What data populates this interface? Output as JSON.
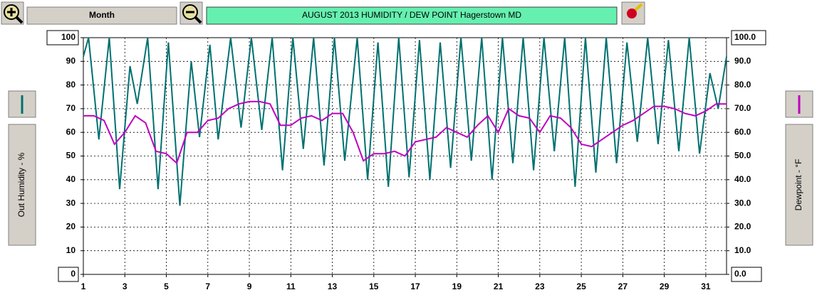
{
  "toolbar": {
    "period": "Month"
  },
  "chart_data": {
    "type": "line",
    "title": "AUGUST 2013  HUMIDITY / DEW POINT  Hagerstown MD",
    "y_label": "Out Humidity - %",
    "y2_label": "Dewpoint - °F",
    "xlim": [
      1,
      32
    ],
    "xticks": [
      1,
      3,
      5,
      7,
      9,
      11,
      13,
      15,
      17,
      19,
      21,
      23,
      25,
      27,
      29,
      31
    ],
    "ylim": [
      0,
      100
    ],
    "yticks": [
      0,
      10,
      20,
      30,
      40,
      50,
      60,
      70,
      80,
      90,
      100
    ],
    "y2lim": [
      0,
      100
    ],
    "y2ticks": [
      {
        "value": 0,
        "label": "0.0"
      },
      {
        "value": 10,
        "label": "10.0"
      },
      {
        "value": 20,
        "label": "20.0"
      },
      {
        "value": 30,
        "label": "30.0"
      },
      {
        "value": 40,
        "label": "40.0"
      },
      {
        "value": 50,
        "label": "50.0"
      },
      {
        "value": 60,
        "label": "60.0"
      },
      {
        "value": 70,
        "label": "70.0"
      },
      {
        "value": 80,
        "label": "80.0"
      },
      {
        "value": 90,
        "label": "90.0"
      },
      {
        "value": 100,
        "label": "100.0"
      }
    ],
    "grid": true,
    "series": [
      {
        "color": "#007070",
        "axis": "y",
        "x": [
          1,
          1.25,
          1.75,
          2.25,
          2.75,
          3.25,
          3.6,
          4.1,
          4.6,
          5.1,
          5.65,
          6.2,
          6.6,
          7.1,
          7.5,
          8.1,
          8.6,
          9.1,
          9.6,
          10.1,
          10.6,
          11.1,
          11.6,
          12.1,
          12.6,
          13.1,
          13.6,
          14.2,
          14.7,
          15.2,
          15.7,
          16.2,
          16.7,
          17.2,
          17.7,
          18.2,
          18.7,
          19.2,
          19.7,
          20.2,
          20.7,
          21.2,
          21.7,
          22.2,
          22.7,
          23.2,
          23.7,
          24.2,
          24.7,
          25.2,
          25.7,
          26.2,
          26.7,
          27.2,
          27.7,
          28.2,
          28.7,
          29.2,
          29.7,
          30.2,
          30.7,
          31.2,
          31.6,
          32
        ],
        "values": [
          92,
          100,
          57,
          100,
          36,
          88,
          72,
          100,
          36,
          98,
          29,
          90,
          58,
          97,
          57,
          100,
          62,
          100,
          61,
          100,
          44,
          100,
          53,
          100,
          46,
          100,
          48,
          100,
          40,
          98,
          37,
          100,
          41,
          99,
          40,
          98,
          45,
          100,
          48,
          100,
          40,
          100,
          47,
          100,
          44,
          100,
          52,
          100,
          37,
          100,
          43,
          100,
          47,
          98,
          56,
          100,
          55,
          99,
          52,
          100,
          51,
          85,
          70,
          92
        ]
      },
      {
        "color": "#c000c0",
        "axis": "y2",
        "x": [
          1,
          1.5,
          2,
          2.5,
          3,
          3.5,
          4,
          4.5,
          5,
          5.5,
          6,
          6.5,
          7,
          7.5,
          8,
          8.5,
          9,
          9.5,
          10,
          10.5,
          11,
          11.5,
          12,
          12.5,
          13,
          13.5,
          14,
          14.5,
          15,
          15.5,
          16,
          16.5,
          17,
          17.5,
          18,
          18.5,
          19,
          19.5,
          20,
          20.5,
          21,
          21.5,
          22,
          22.5,
          23,
          23.5,
          24,
          24.5,
          25,
          25.5,
          26,
          26.5,
          27,
          27.5,
          28,
          28.5,
          29,
          29.5,
          30,
          30.5,
          31,
          31.5,
          32
        ],
        "values": [
          67,
          67,
          65,
          55,
          60,
          67,
          64,
          52,
          51,
          47,
          60,
          60,
          65,
          66,
          70,
          72,
          73,
          73,
          72,
          63,
          63,
          66,
          67,
          65,
          68,
          68,
          60,
          48,
          51,
          51,
          52,
          50,
          56,
          57,
          58,
          62,
          60,
          58,
          63,
          67,
          60,
          70,
          67,
          66,
          60,
          67,
          66,
          62,
          55,
          54,
          57,
          60,
          63,
          65,
          68,
          71,
          71,
          70,
          68,
          67,
          69,
          72,
          72
        ]
      }
    ]
  }
}
